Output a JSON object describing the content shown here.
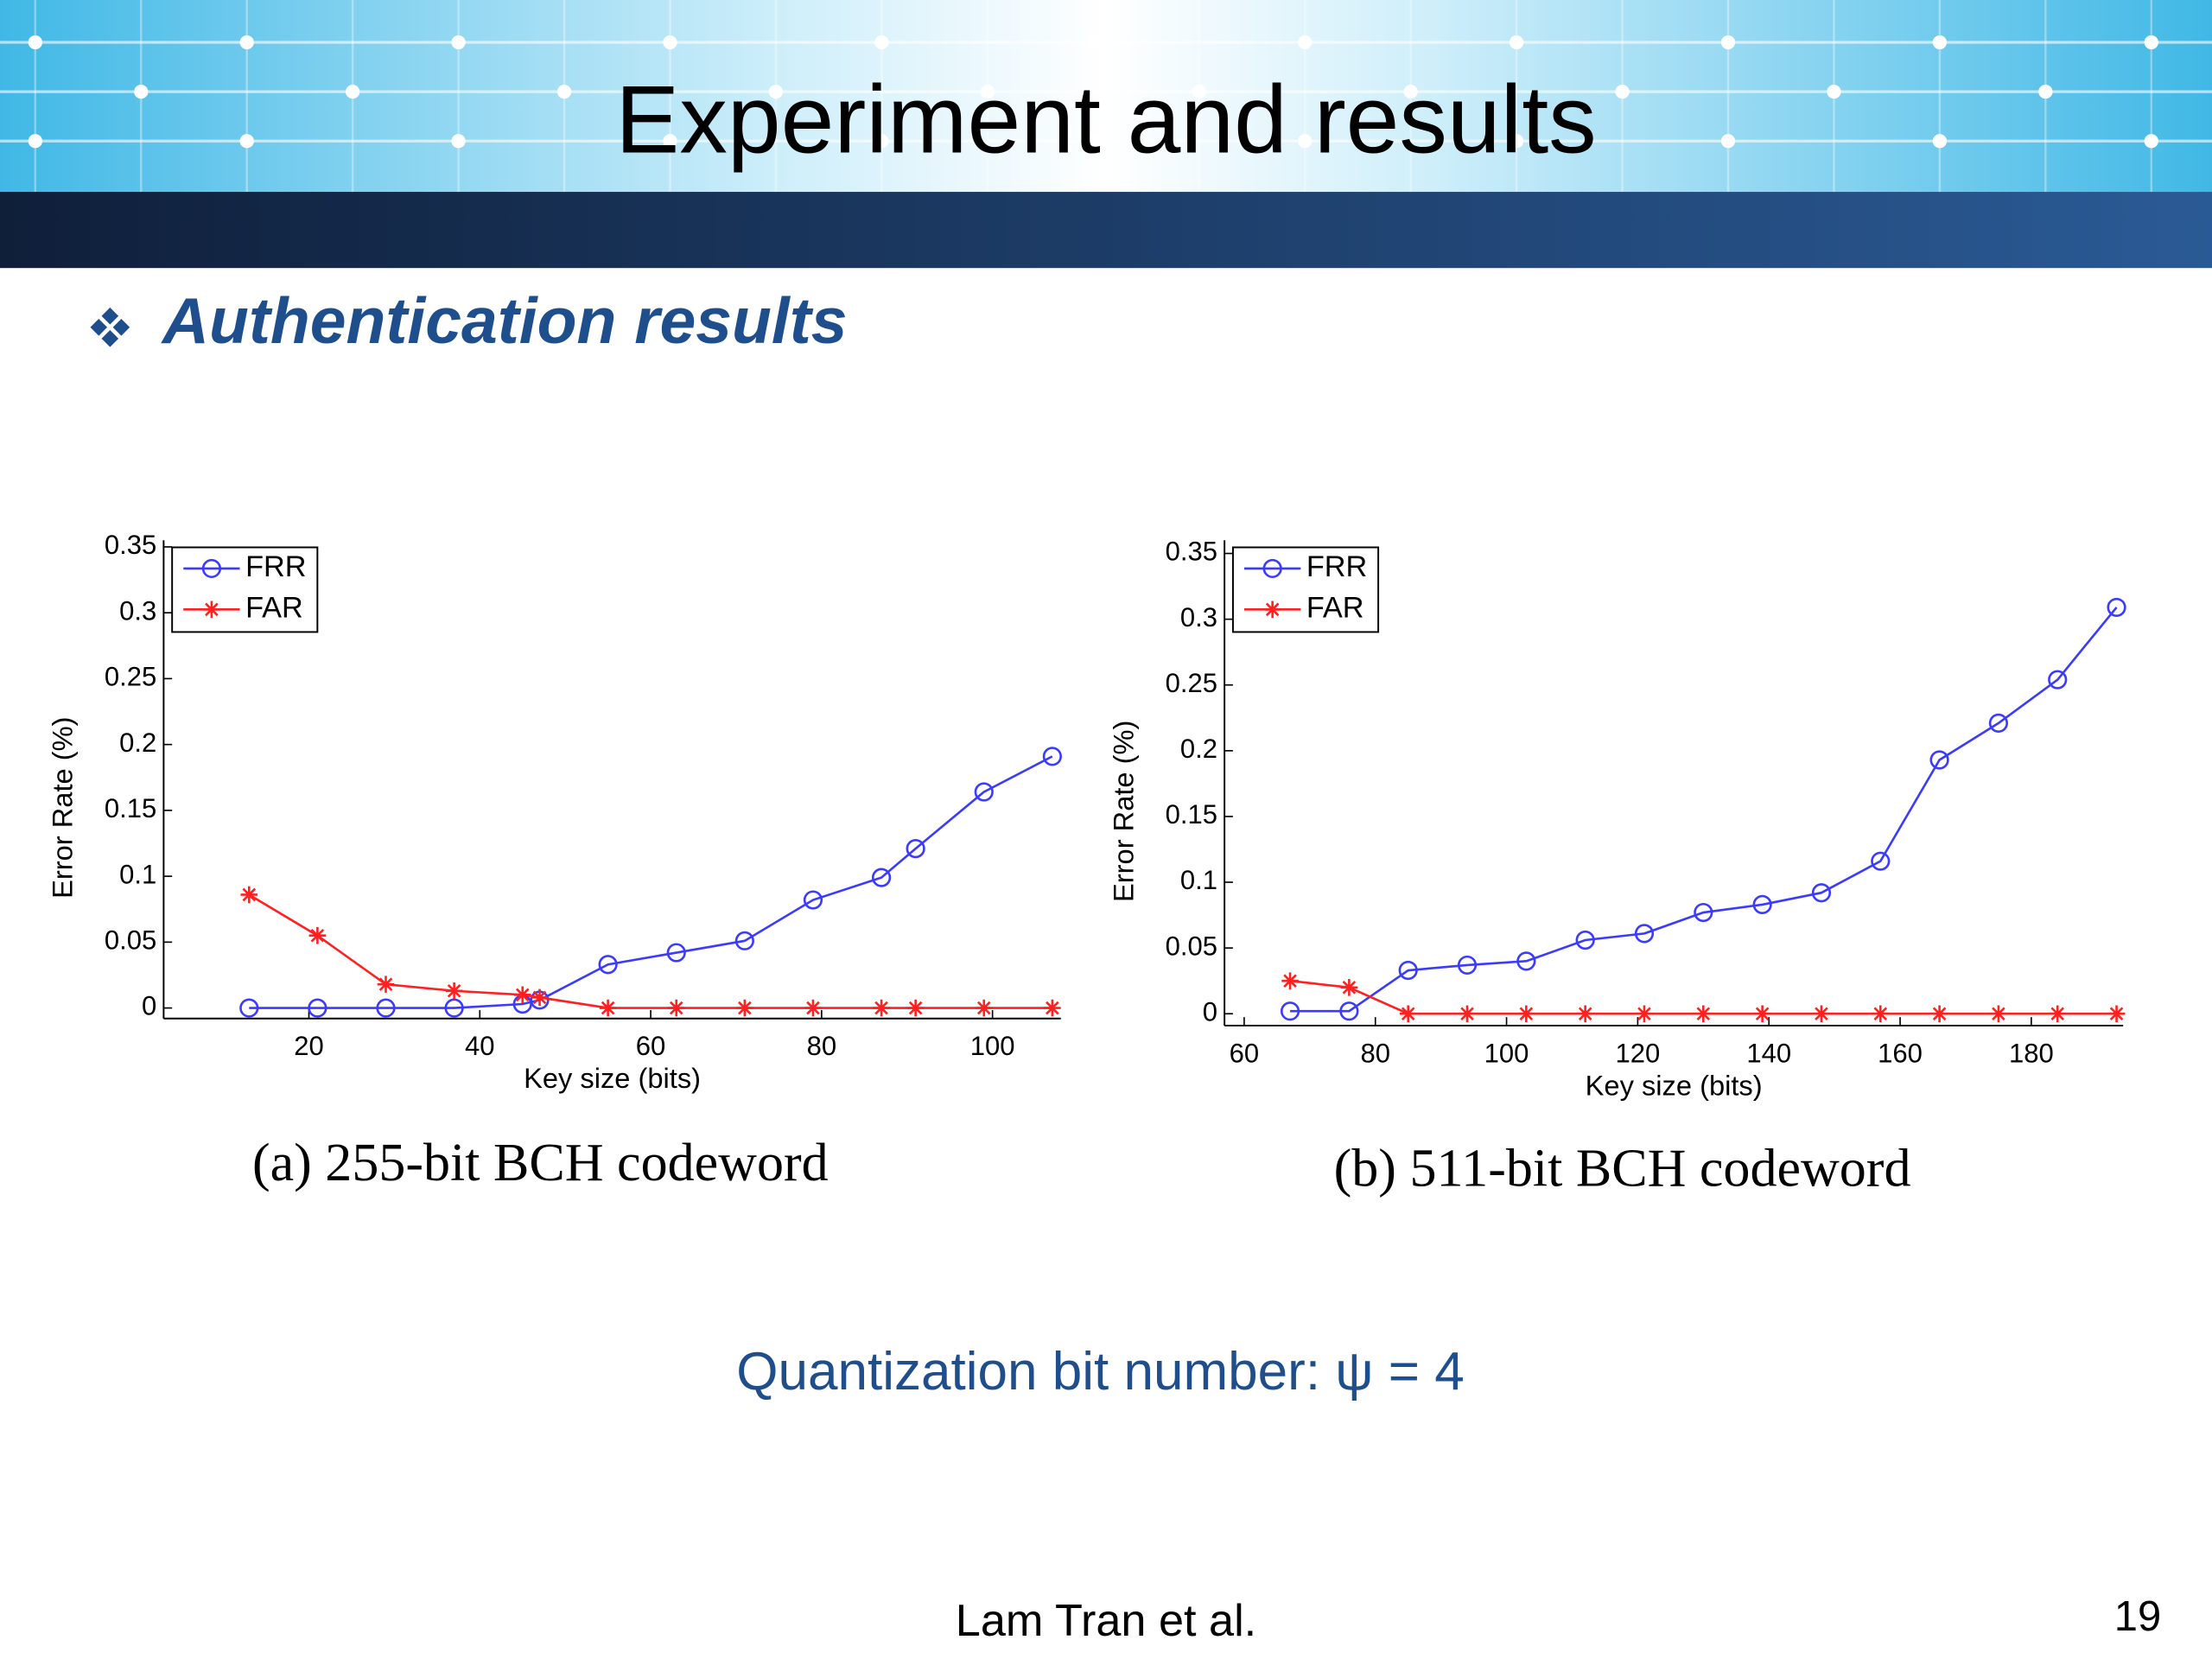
{
  "slide": {
    "title": "Experiment and results",
    "subtitle": "Authentication results",
    "note": "Quantization bit number: ψ = 4",
    "footer": "Lam Tran et al.",
    "page_number": "19"
  },
  "chart_data": [
    {
      "type": "line",
      "caption": "(a) 255-bit BCH codeword",
      "x_label": "Key size (bits)",
      "y_label": "Error Rate (%)",
      "xlim": [
        3,
        108
      ],
      "xticks": [
        20,
        40,
        60,
        80,
        100
      ],
      "ylim": [
        -0.008,
        0.355
      ],
      "yticks": [
        0,
        0.05,
        0.1,
        0.15,
        0.2,
        0.25,
        0.3,
        0.35
      ],
      "legend": "upper left",
      "series": [
        {
          "name": "FRR",
          "color": "#3b3bff",
          "marker": "o",
          "x": [
            13,
            21,
            29,
            37,
            45,
            47,
            55,
            63,
            71,
            79,
            87,
            91,
            99,
            107
          ],
          "values": [
            0,
            0,
            0,
            0,
            0.003,
            0.006,
            0.033,
            0.042,
            0.051,
            0.082,
            0.099,
            0.121,
            0.164,
            0.191
          ]
        },
        {
          "name": "FAR",
          "color": "#ff2020",
          "marker": "*",
          "x": [
            13,
            21,
            29,
            37,
            45,
            47,
            55,
            63,
            71,
            79,
            87,
            91,
            99,
            107
          ],
          "values": [
            0.086,
            0.055,
            0.018,
            0.013,
            0.01,
            0.008,
            0,
            0,
            0,
            0,
            0,
            0,
            0,
            0
          ]
        }
      ]
    },
    {
      "type": "line",
      "caption": "(b) 511-bit BCH codeword",
      "x_label": "Key size (bits)",
      "y_label": "Error Rate (%)",
      "xlim": [
        57,
        194
      ],
      "xticks": [
        60,
        80,
        100,
        120,
        140,
        160,
        180
      ],
      "ylim": [
        -0.009,
        0.36
      ],
      "yticks": [
        0,
        0.05,
        0.1,
        0.15,
        0.2,
        0.25,
        0.3,
        0.35
      ],
      "legend": "upper left",
      "series": [
        {
          "name": "FRR",
          "color": "#3b3bff",
          "marker": "o",
          "x": [
            67,
            76,
            85,
            94,
            103,
            112,
            121,
            130,
            139,
            148,
            157,
            166,
            175,
            184,
            193
          ],
          "values": [
            0.002,
            0.002,
            0.033,
            0.037,
            0.04,
            0.056,
            0.061,
            0.077,
            0.083,
            0.092,
            0.116,
            0.193,
            0.221,
            0.254,
            0.309
          ]
        },
        {
          "name": "FAR",
          "color": "#ff2020",
          "marker": "*",
          "x": [
            67,
            76,
            85,
            94,
            103,
            112,
            121,
            130,
            139,
            148,
            157,
            166,
            175,
            184,
            193
          ],
          "values": [
            0.025,
            0.02,
            0,
            0,
            0,
            0,
            0,
            0,
            0,
            0,
            0,
            0,
            0,
            0,
            0
          ]
        }
      ]
    }
  ]
}
